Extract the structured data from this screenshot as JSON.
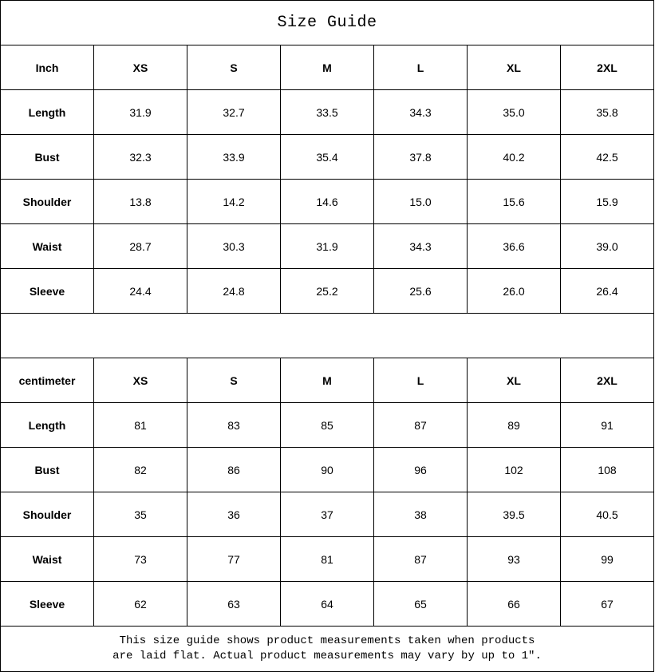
{
  "title": "Size Guide",
  "sizes": [
    "XS",
    "S",
    "M",
    "L",
    "XL",
    "2XL"
  ],
  "inch_table": {
    "unit": "Inch",
    "rows": [
      {
        "label": "Length",
        "values": [
          "31.9",
          "32.7",
          "33.5",
          "34.3",
          "35.0",
          "35.8"
        ]
      },
      {
        "label": "Bust",
        "values": [
          "32.3",
          "33.9",
          "35.4",
          "37.8",
          "40.2",
          "42.5"
        ]
      },
      {
        "label": "Shoulder",
        "values": [
          "13.8",
          "14.2",
          "14.6",
          "15.0",
          "15.6",
          "15.9"
        ]
      },
      {
        "label": "Waist",
        "values": [
          "28.7",
          "30.3",
          "31.9",
          "34.3",
          "36.6",
          "39.0"
        ]
      },
      {
        "label": "Sleeve",
        "values": [
          "24.4",
          "24.8",
          "25.2",
          "25.6",
          "26.0",
          "26.4"
        ]
      }
    ]
  },
  "cm_table": {
    "unit": "centimeter",
    "rows": [
      {
        "label": "Length",
        "values": [
          "81",
          "83",
          "85",
          "87",
          "89",
          "91"
        ]
      },
      {
        "label": "Bust",
        "values": [
          "82",
          "86",
          "90",
          "96",
          "102",
          "108"
        ]
      },
      {
        "label": "Shoulder",
        "values": [
          "35",
          "36",
          "37",
          "38",
          "39.5",
          "40.5"
        ]
      },
      {
        "label": "Waist",
        "values": [
          "73",
          "77",
          "81",
          "87",
          "93",
          "99"
        ]
      },
      {
        "label": "Sleeve",
        "values": [
          "62",
          "63",
          "64",
          "65",
          "66",
          "67"
        ]
      }
    ]
  },
  "note": {
    "line1": "This size guide shows product measurements taken when products",
    "line2": "are laid flat. Actual product measurements may vary by up to 1″."
  }
}
